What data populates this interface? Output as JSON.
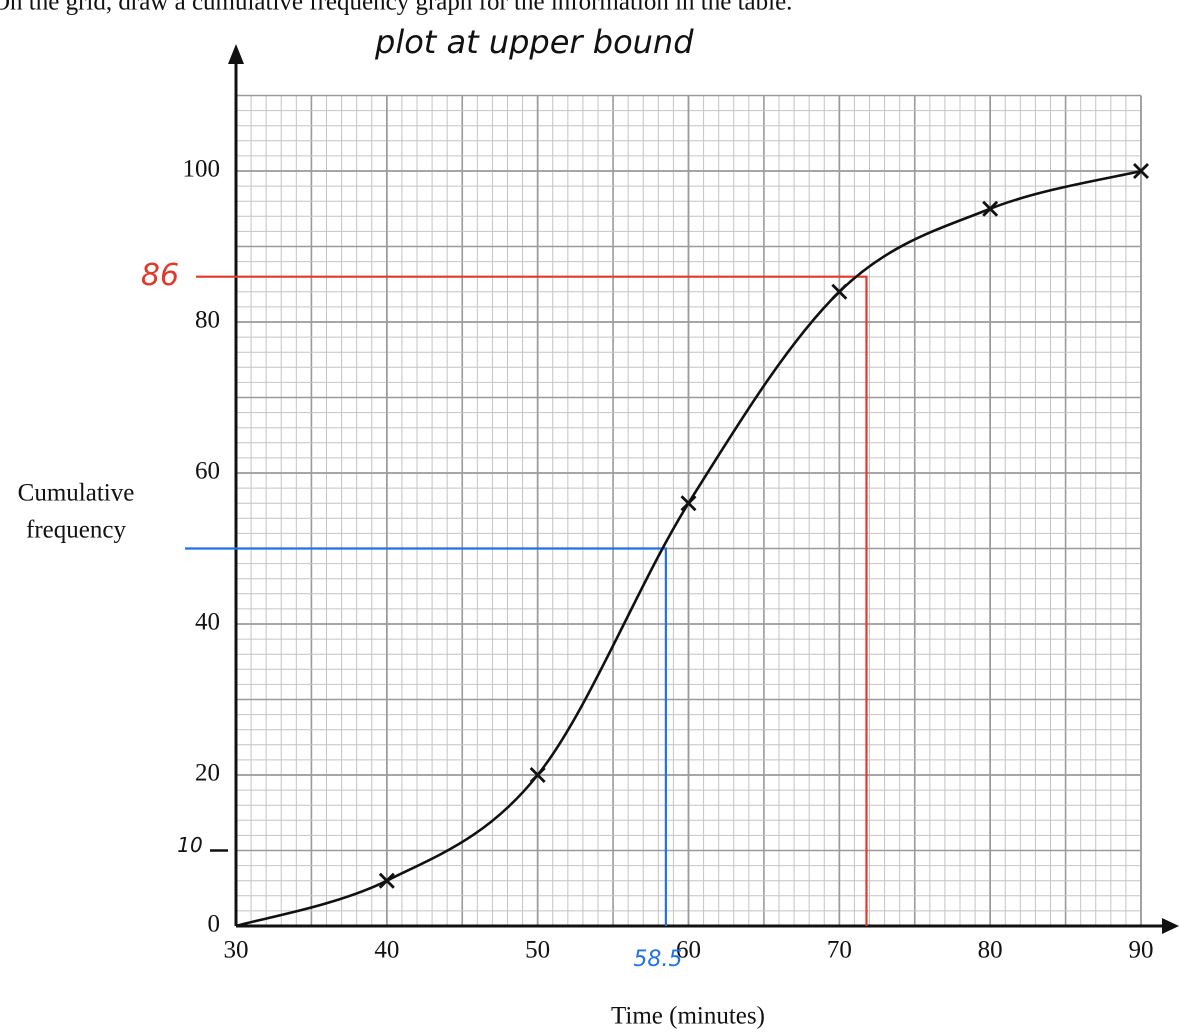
{
  "chart_data": {
    "type": "line",
    "title": "On the grid, draw a cumulative frequency graph for the information in the table.",
    "annotation": "plot at upper bound",
    "x_label": "Time (minutes)",
    "y_label": [
      "Cumulative",
      "frequency"
    ],
    "x": [
      30,
      40,
      50,
      60,
      70,
      80,
      90
    ],
    "values": [
      0,
      6,
      20,
      56,
      84,
      95,
      100
    ],
    "color": "#111111",
    "xlim": [
      30,
      90
    ],
    "ylim": [
      0,
      110
    ],
    "xticks": [
      30,
      40,
      50,
      60,
      70,
      80,
      90
    ],
    "yticks": [
      0,
      20,
      40,
      60,
      80,
      100
    ],
    "grid": true,
    "readings": [
      {
        "x": 71.8,
        "y": 86,
        "color": "#e3382c"
      },
      {
        "x": 58.5,
        "y": 50,
        "color": "#1f72e8"
      }
    ],
    "y_marks": [
      10
    ]
  }
}
